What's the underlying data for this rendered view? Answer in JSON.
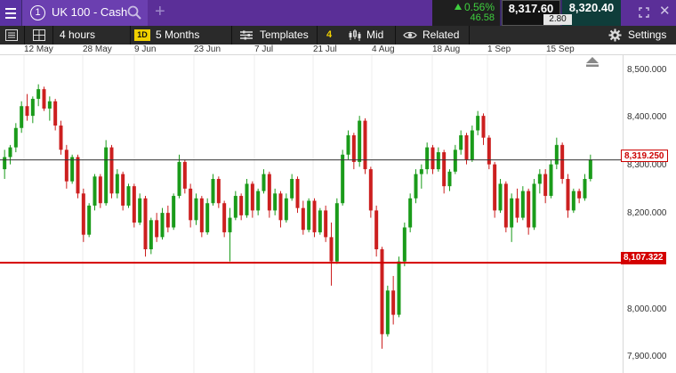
{
  "instrument": {
    "number": "1",
    "name": "UK 100 - Cash"
  },
  "quote": {
    "change_pct": "0.56%",
    "change_pts": "46.58",
    "sell": "8,317.60",
    "buy": "8,320.40",
    "spread": "2.80"
  },
  "toolbar": {
    "interval": "4 hours",
    "range_badge": "1D",
    "range": "5 Months",
    "templates": "Templates",
    "indicator_count": "4",
    "price_type": "Mid",
    "related": "Related",
    "settings": "Settings"
  },
  "colors": {
    "up": "#1a9b1a",
    "down": "#cc1f1f",
    "level_line": "#d40000",
    "current_line": "#333333",
    "header": "#5b2f98"
  },
  "icons": [
    "menu-icon",
    "info-number-icon",
    "search-icon",
    "add-icon",
    "expand-icon",
    "close-icon",
    "list-icon",
    "grid-icon",
    "bar-chart-icon",
    "eye-icon",
    "gear-icon",
    "scroll-to-end-icon"
  ],
  "chart_data": {
    "type": "candlestick",
    "x_tick_labels": [
      "12 May",
      "28 May",
      "9 Jun",
      "23 Jun",
      "7 Jul",
      "21 Jul",
      "4 Aug",
      "18 Aug",
      "1 Sep",
      "15 Sep"
    ],
    "y_tick_labels": [
      "8,500.000",
      "8,400.000",
      "8,300.000",
      "8,200.000",
      "8,000.000",
      "7,900.000"
    ],
    "ylim": [
      7880,
      8535
    ],
    "grid": true,
    "series": [
      {
        "name": "UK 100 - Cash",
        "points": [
          [
            8300,
            8340,
            8280,
            8325
          ],
          [
            8325,
            8350,
            8310,
            8345
          ],
          [
            8345,
            8395,
            8335,
            8385
          ],
          [
            8385,
            8440,
            8375,
            8430
          ],
          [
            8430,
            8455,
            8400,
            8410
          ],
          [
            8410,
            8450,
            8395,
            8445
          ],
          [
            8445,
            8475,
            8430,
            8465
          ],
          [
            8465,
            8470,
            8420,
            8425
          ],
          [
            8425,
            8450,
            8400,
            8440
          ],
          [
            8440,
            8445,
            8380,
            8390
          ],
          [
            8390,
            8400,
            8330,
            8340
          ],
          [
            8340,
            8350,
            8260,
            8275
          ],
          [
            8275,
            8330,
            8270,
            8325
          ],
          [
            8325,
            8330,
            8240,
            8250
          ],
          [
            8250,
            8260,
            8150,
            8165
          ],
          [
            8165,
            8230,
            8160,
            8225
          ],
          [
            8225,
            8290,
            8215,
            8285
          ],
          [
            8285,
            8290,
            8220,
            8230
          ],
          [
            8230,
            8360,
            8225,
            8345
          ],
          [
            8345,
            8350,
            8240,
            8250
          ],
          [
            8250,
            8300,
            8240,
            8290
          ],
          [
            8290,
            8295,
            8215,
            8225
          ],
          [
            8225,
            8270,
            8220,
            8265
          ],
          [
            8265,
            8270,
            8180,
            8190
          ],
          [
            8190,
            8250,
            8185,
            8240
          ],
          [
            8240,
            8245,
            8120,
            8135
          ],
          [
            8135,
            8200,
            8125,
            8195
          ],
          [
            8195,
            8210,
            8150,
            8160
          ],
          [
            8160,
            8220,
            8155,
            8210
          ],
          [
            8210,
            8225,
            8170,
            8180
          ],
          [
            8180,
            8250,
            8175,
            8245
          ],
          [
            8245,
            8330,
            8240,
            8315
          ],
          [
            8315,
            8320,
            8250,
            8260
          ],
          [
            8260,
            8270,
            8180,
            8195
          ],
          [
            8195,
            8250,
            8185,
            8240
          ],
          [
            8240,
            8245,
            8160,
            8170
          ],
          [
            8170,
            8240,
            8165,
            8230
          ],
          [
            8230,
            8290,
            8225,
            8280
          ],
          [
            8280,
            8285,
            8220,
            8230
          ],
          [
            8230,
            8235,
            8160,
            8170
          ],
          [
            8170,
            8220,
            8110,
            8200
          ],
          [
            8200,
            8255,
            8195,
            8245
          ],
          [
            8245,
            8250,
            8195,
            8205
          ],
          [
            8205,
            8280,
            8200,
            8270
          ],
          [
            8270,
            8275,
            8200,
            8215
          ],
          [
            8215,
            8260,
            8205,
            8255
          ],
          [
            8255,
            8300,
            8250,
            8290
          ],
          [
            8290,
            8295,
            8200,
            8215
          ],
          [
            8215,
            8260,
            8205,
            8250
          ],
          [
            8250,
            8255,
            8180,
            8195
          ],
          [
            8195,
            8250,
            8190,
            8240
          ],
          [
            8240,
            8290,
            8235,
            8280
          ],
          [
            8280,
            8285,
            8210,
            8220
          ],
          [
            8220,
            8235,
            8165,
            8175
          ],
          [
            8175,
            8240,
            8170,
            8235
          ],
          [
            8235,
            8240,
            8160,
            8170
          ],
          [
            8170,
            8220,
            8165,
            8215
          ],
          [
            8215,
            8225,
            8150,
            8160
          ],
          [
            8160,
            8190,
            8060,
            8110
          ],
          [
            8110,
            8240,
            8105,
            8230
          ],
          [
            8230,
            8340,
            8225,
            8330
          ],
          [
            8330,
            8380,
            8320,
            8370
          ],
          [
            8370,
            8375,
            8300,
            8315
          ],
          [
            8315,
            8410,
            8305,
            8400
          ],
          [
            8400,
            8405,
            8290,
            8300
          ],
          [
            8300,
            8305,
            8200,
            8215
          ],
          [
            8215,
            8225,
            8120,
            8135
          ],
          [
            8135,
            8140,
            7930,
            7960
          ],
          [
            7960,
            8060,
            7955,
            8050
          ],
          [
            8050,
            8080,
            7980,
            8000
          ],
          [
            8000,
            8120,
            7995,
            8110
          ],
          [
            8110,
            8190,
            8100,
            8180
          ],
          [
            8180,
            8250,
            8170,
            8240
          ],
          [
            8240,
            8300,
            8230,
            8290
          ],
          [
            8290,
            8310,
            8260,
            8300
          ],
          [
            8300,
            8355,
            8290,
            8345
          ],
          [
            8345,
            8350,
            8290,
            8300
          ],
          [
            8300,
            8345,
            8295,
            8335
          ],
          [
            8335,
            8340,
            8250,
            8265
          ],
          [
            8265,
            8300,
            8255,
            8295
          ],
          [
            8295,
            8350,
            8290,
            8340
          ],
          [
            8340,
            8380,
            8330,
            8370
          ],
          [
            8370,
            8375,
            8310,
            8320
          ],
          [
            8320,
            8390,
            8315,
            8380
          ],
          [
            8380,
            8420,
            8370,
            8410
          ],
          [
            8410,
            8415,
            8350,
            8365
          ],
          [
            8365,
            8370,
            8300,
            8310
          ],
          [
            8310,
            8315,
            8200,
            8215
          ],
          [
            8215,
            8280,
            8210,
            8270
          ],
          [
            8270,
            8275,
            8170,
            8180
          ],
          [
            8180,
            8250,
            8150,
            8240
          ],
          [
            8240,
            8260,
            8190,
            8200
          ],
          [
            8200,
            8265,
            8195,
            8255
          ],
          [
            8255,
            8260,
            8165,
            8180
          ],
          [
            8180,
            8280,
            8175,
            8270
          ],
          [
            8270,
            8300,
            8250,
            8290
          ],
          [
            8290,
            8300,
            8230,
            8245
          ],
          [
            8245,
            8320,
            8240,
            8310
          ],
          [
            8310,
            8365,
            8300,
            8350
          ],
          [
            8350,
            8355,
            8270,
            8280
          ],
          [
            8280,
            8290,
            8200,
            8215
          ],
          [
            8215,
            8260,
            8210,
            8255
          ],
          [
            8255,
            8260,
            8230,
            8240
          ],
          [
            8240,
            8290,
            8235,
            8280
          ],
          [
            8280,
            8330,
            8275,
            8320
          ]
        ]
      }
    ],
    "annotations": [
      {
        "type": "horizontal_line",
        "value": 8319.25,
        "label": "8,319.250"
      },
      {
        "type": "horizontal_line",
        "value": 8107.322,
        "label": "8,107.322"
      }
    ]
  }
}
